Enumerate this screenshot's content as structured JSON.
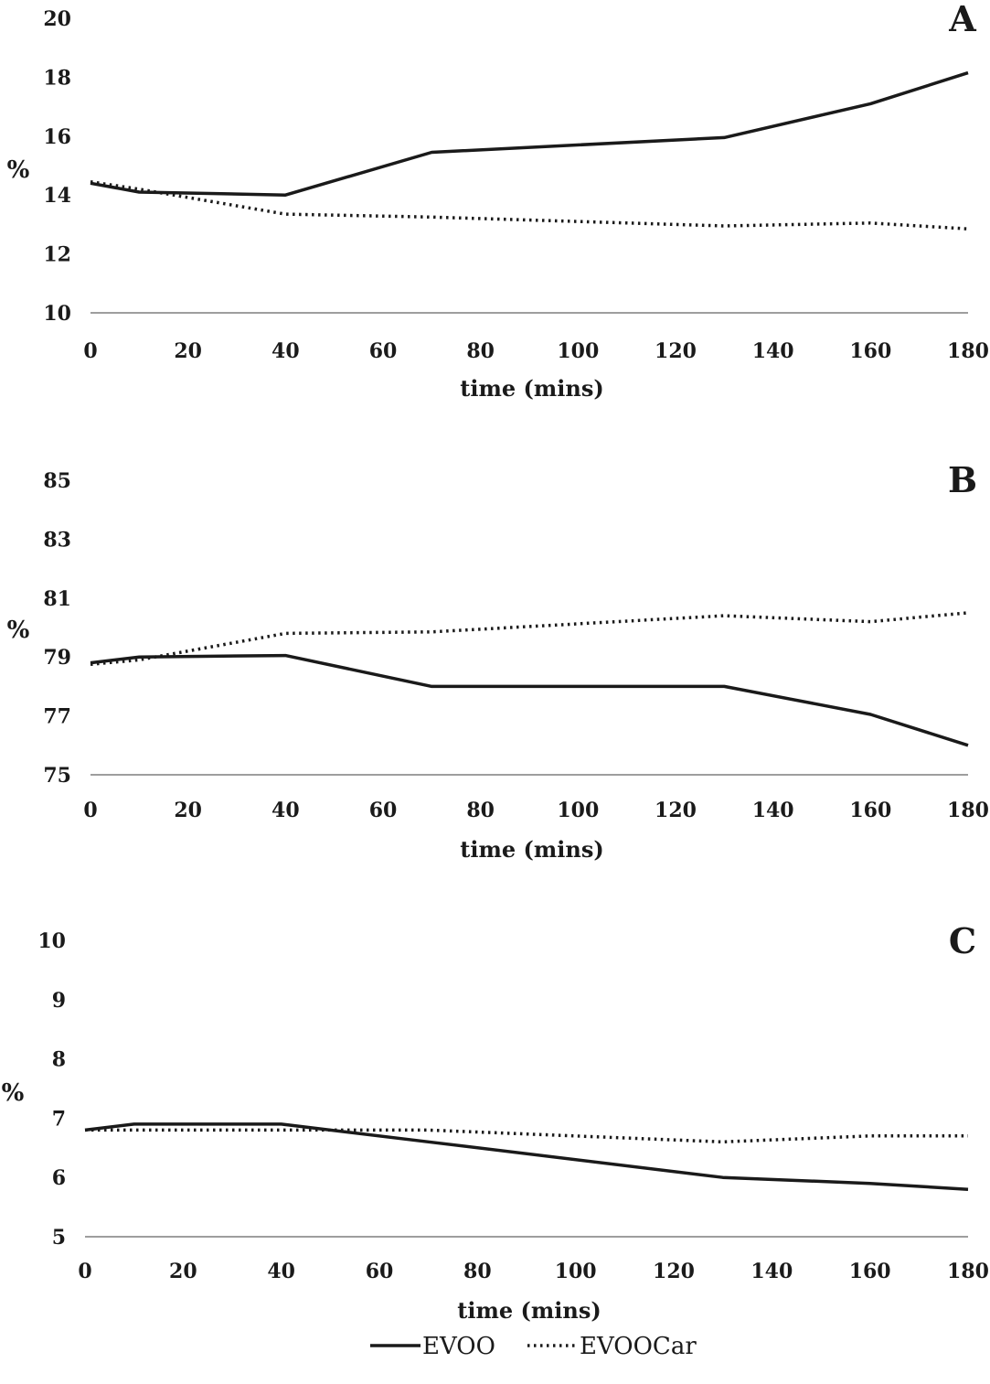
{
  "chart_data": [
    {
      "type": "line",
      "panel_label": "A",
      "ylabel": "%",
      "xlabel": "time (mins)",
      "xlim": [
        0,
        180
      ],
      "ylim": [
        10,
        20
      ],
      "xticks": [
        0,
        20,
        40,
        60,
        80,
        100,
        120,
        140,
        160,
        180
      ],
      "yticks": [
        10,
        12,
        14,
        16,
        18,
        20
      ],
      "grid": false,
      "series": [
        {
          "name": "EVOO",
          "style": "solid",
          "x": [
            0,
            10,
            40,
            70,
            130,
            160,
            180
          ],
          "y": [
            14.4,
            14.1,
            14.0,
            15.45,
            15.95,
            17.1,
            18.15
          ]
        },
        {
          "name": "EVOOCar",
          "style": "dotted",
          "x": [
            0,
            10,
            40,
            70,
            130,
            160,
            180
          ],
          "y": [
            14.45,
            14.2,
            13.35,
            13.25,
            12.95,
            13.05,
            12.85
          ]
        }
      ]
    },
    {
      "type": "line",
      "panel_label": "B",
      "ylabel": "%",
      "xlabel": "time (mins)",
      "xlim": [
        0,
        180
      ],
      "ylim": [
        75,
        85
      ],
      "xticks": [
        0,
        20,
        40,
        60,
        80,
        100,
        120,
        140,
        160,
        180
      ],
      "yticks": [
        75,
        77,
        79,
        81,
        83,
        85
      ],
      "grid": false,
      "series": [
        {
          "name": "EVOO",
          "style": "solid",
          "x": [
            0,
            10,
            40,
            70,
            130,
            160,
            180
          ],
          "y": [
            78.8,
            79.0,
            79.05,
            78.0,
            78.0,
            77.05,
            76.0
          ]
        },
        {
          "name": "EVOOCar",
          "style": "dotted",
          "x": [
            0,
            10,
            40,
            70,
            130,
            160,
            180
          ],
          "y": [
            78.75,
            78.9,
            79.8,
            79.85,
            80.4,
            80.2,
            80.5
          ]
        }
      ]
    },
    {
      "type": "line",
      "panel_label": "C",
      "ylabel": "%",
      "xlabel": "time (mins)",
      "xlim": [
        0,
        180
      ],
      "ylim": [
        5,
        10
      ],
      "xticks": [
        0,
        20,
        40,
        60,
        80,
        100,
        120,
        140,
        160,
        180
      ],
      "yticks": [
        5,
        6,
        7,
        8,
        9,
        10
      ],
      "grid": false,
      "series": [
        {
          "name": "EVOO",
          "style": "solid",
          "x": [
            0,
            10,
            40,
            70,
            130,
            160,
            180
          ],
          "y": [
            6.8,
            6.9,
            6.9,
            6.6,
            6.0,
            5.9,
            5.8
          ]
        },
        {
          "name": "EVOOCar",
          "style": "dotted",
          "x": [
            0,
            10,
            40,
            70,
            130,
            160,
            180
          ],
          "y": [
            6.8,
            6.8,
            6.8,
            6.8,
            6.6,
            6.7,
            6.7
          ]
        }
      ]
    }
  ],
  "legend": {
    "position": "bottom-center",
    "items": [
      {
        "label": "EVOO",
        "style": "solid"
      },
      {
        "label": "EVOOCar",
        "style": "dotted"
      }
    ]
  },
  "colors": {
    "line": "#1a1a1a",
    "axis": "#9e9e9e",
    "background": "#ffffff"
  }
}
